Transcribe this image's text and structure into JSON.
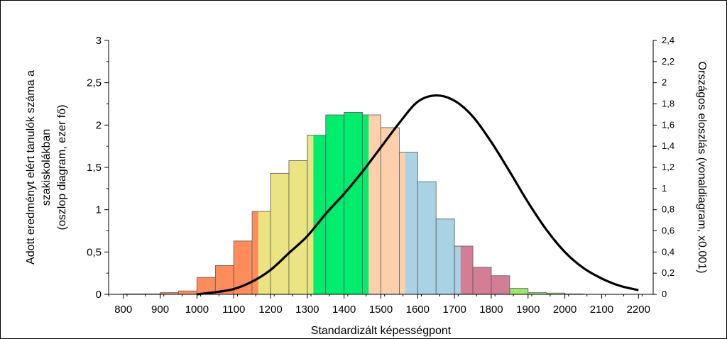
{
  "chart_data": {
    "type": "bar",
    "title": "",
    "xlabel": "Standardizált képességpont",
    "ylabel_left_lines": [
      "Adott eredményt elért tanulók száma a",
      "szakiskolákban",
      "(oszlop diagram, ezer fő)"
    ],
    "ylabel_right": "Országos eloszlás (vonaldiagram, x0.001)",
    "xlim": [
      760,
      2240
    ],
    "x_ticks": [
      800,
      900,
      1000,
      1100,
      1200,
      1300,
      1400,
      1500,
      1600,
      1700,
      1800,
      1900,
      2000,
      2100,
      2200
    ],
    "x_tick_labels": [
      "800",
      "900",
      "1000",
      "1100",
      "1200",
      "1300",
      "1400",
      "1500",
      "1600",
      "1700",
      "1800",
      "1900",
      "2000",
      "2100",
      "2200"
    ],
    "ylim_left": [
      0,
      3
    ],
    "y_ticks_left": [
      0,
      0.5,
      1,
      1.5,
      2,
      2.5,
      3
    ],
    "y_tick_labels_left": [
      "0",
      "0,5",
      "1",
      "1,5",
      "2",
      "2,5",
      "3"
    ],
    "ylim_right": [
      0,
      2.4
    ],
    "y_ticks_right": [
      0,
      0.2,
      0.4,
      0.6,
      0.8,
      1,
      1.2,
      1.4,
      1.6,
      1.8,
      2,
      2.2,
      2.4
    ],
    "y_tick_labels_right": [
      "0",
      "0,2",
      "0,4",
      "0,6",
      "0,8",
      "1",
      "1,2",
      "1,4",
      "1,6",
      "1,8",
      "2",
      "2,2",
      "2,4"
    ],
    "bin_width": 50,
    "bins": [
      {
        "x": 800,
        "value": 0.005,
        "color": "#ff8c5a"
      },
      {
        "x": 850,
        "value": 0.005,
        "color": "#ff8c5a"
      },
      {
        "x": 900,
        "value": 0.02,
        "color": "#ff8c5a"
      },
      {
        "x": 950,
        "value": 0.04,
        "color": "#ff8c5a"
      },
      {
        "x": 1000,
        "value": 0.2,
        "color": "#ff8c5a"
      },
      {
        "x": 1050,
        "value": 0.34,
        "color": "#ff8c5a"
      },
      {
        "x": 1100,
        "value": 0.63,
        "color": "#ff8c5a"
      },
      {
        "x": 1150,
        "value": 0.98,
        "color": "#ece383",
        "left_strip_color": "#ff8c5a"
      },
      {
        "x": 1200,
        "value": 1.43,
        "color": "#ece383"
      },
      {
        "x": 1250,
        "value": 1.58,
        "color": "#ece383"
      },
      {
        "x": 1300,
        "value": 1.88,
        "color": "#00ec6c",
        "left_strip_color": "#ece383"
      },
      {
        "x": 1350,
        "value": 2.12,
        "color": "#00ec6c"
      },
      {
        "x": 1400,
        "value": 2.15,
        "color": "#00ec6c"
      },
      {
        "x": 1450,
        "value": 2.12,
        "color": "#fcd0ac",
        "left_strip_color": "#00ec6c"
      },
      {
        "x": 1500,
        "value": 1.97,
        "color": "#fcd0ac"
      },
      {
        "x": 1550,
        "value": 1.68,
        "color": "#a9d2e4",
        "left_strip_color": "#fcd0ac"
      },
      {
        "x": 1600,
        "value": 1.33,
        "color": "#a9d2e4"
      },
      {
        "x": 1650,
        "value": 0.89,
        "color": "#a9d2e4"
      },
      {
        "x": 1700,
        "value": 0.57,
        "color": "#d47e96",
        "left_strip_color": "#a9d2e4"
      },
      {
        "x": 1750,
        "value": 0.32,
        "color": "#d47e96"
      },
      {
        "x": 1800,
        "value": 0.22,
        "color": "#d47e96"
      },
      {
        "x": 1850,
        "value": 0.07,
        "color": "#9ce86c"
      },
      {
        "x": 1900,
        "value": 0.02,
        "color": "#9ce86c"
      },
      {
        "x": 1950,
        "value": 0.015,
        "color": "#9ce86c"
      },
      {
        "x": 2000,
        "value": 0.005,
        "color": "#9ce86c"
      }
    ],
    "line": {
      "axis": "right",
      "color": "#000000",
      "points": [
        {
          "x": 1000,
          "y": 0.0
        },
        {
          "x": 1050,
          "y": 0.02
        },
        {
          "x": 1100,
          "y": 0.05
        },
        {
          "x": 1150,
          "y": 0.12
        },
        {
          "x": 1200,
          "y": 0.23
        },
        {
          "x": 1250,
          "y": 0.39
        },
        {
          "x": 1300,
          "y": 0.55
        },
        {
          "x": 1350,
          "y": 0.76
        },
        {
          "x": 1400,
          "y": 0.95
        },
        {
          "x": 1450,
          "y": 1.16
        },
        {
          "x": 1500,
          "y": 1.39
        },
        {
          "x": 1550,
          "y": 1.62
        },
        {
          "x": 1600,
          "y": 1.82
        },
        {
          "x": 1650,
          "y": 1.88
        },
        {
          "x": 1700,
          "y": 1.83
        },
        {
          "x": 1750,
          "y": 1.68
        },
        {
          "x": 1800,
          "y": 1.44
        },
        {
          "x": 1850,
          "y": 1.16
        },
        {
          "x": 1900,
          "y": 0.87
        },
        {
          "x": 1950,
          "y": 0.61
        },
        {
          "x": 2000,
          "y": 0.4
        },
        {
          "x": 2050,
          "y": 0.25
        },
        {
          "x": 2100,
          "y": 0.15
        },
        {
          "x": 2150,
          "y": 0.08
        },
        {
          "x": 2200,
          "y": 0.04
        }
      ]
    },
    "grid": false,
    "legend": "none"
  }
}
